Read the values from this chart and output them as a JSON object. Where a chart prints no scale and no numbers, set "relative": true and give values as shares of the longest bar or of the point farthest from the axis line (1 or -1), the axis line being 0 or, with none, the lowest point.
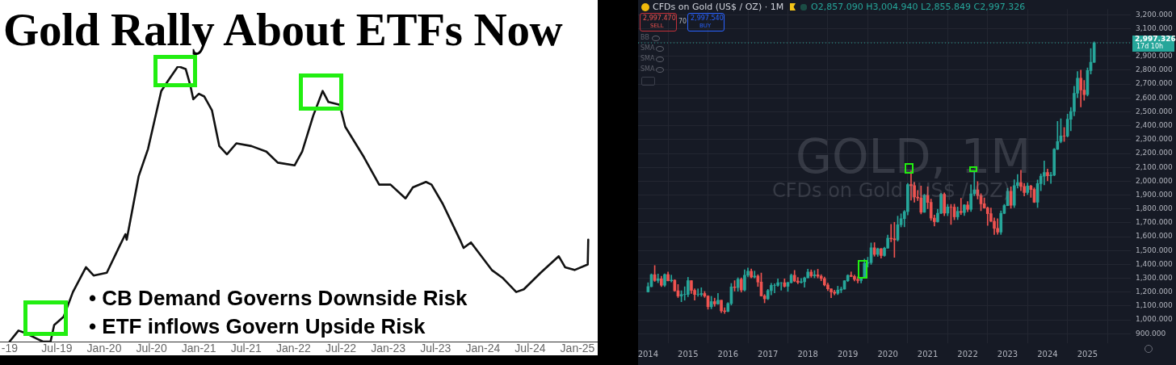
{
  "chart_data": [
    {
      "type": "line",
      "title": "Gold Rally About ETFs Now",
      "relative": true,
      "x": [
        "2019-01-01",
        "2019-02-05",
        "2019-03-04",
        "2019-04-16",
        "2019-05-08",
        "2019-06-07",
        "2019-06-21",
        "2019-07-27",
        "2019-09-02",
        "2019-10-22",
        "2019-11-21",
        "2020-01-11",
        "2020-03-01",
        "2020-03-22",
        "2020-03-27",
        "2020-05-12",
        "2020-06-18",
        "2020-08-08",
        "2020-09-06",
        "2020-10-12",
        "2020-11-11",
        "2020-11-29",
        "2020-12-10",
        "2021-01-01",
        "2021-01-22",
        "2021-02-21",
        "2021-03-19",
        "2021-04-18",
        "2021-05-24",
        "2021-07-21",
        "2021-09-18",
        "2021-11-01",
        "2022-01-05",
        "2022-02-04",
        "2022-03-16",
        "2022-04-22",
        "2022-05-14",
        "2022-06-27",
        "2022-07-18",
        "2022-09-29",
        "2022-11-27",
        "2023-01-10",
        "2023-03-07",
        "2023-04-05",
        "2023-05-25",
        "2023-06-16",
        "2023-07-29",
        "2023-10-04",
        "2023-10-18",
        "2023-11-16",
        "2024-02-05",
        "2024-03-18",
        "2024-05-08",
        "2024-06-07",
        "2024-08-11",
        "2024-10-20",
        "2024-11-14",
        "2024-12-20",
        "2025-02-10",
        "2025-02-12"
      ],
      "series": [
        {
          "color": "#111111",
          "values": [
            0.0,
            0.04,
            0.03,
            0.01,
            0.0,
            0.0,
            0.06,
            0.09,
            0.18,
            0.27,
            0.24,
            0.25,
            0.35,
            0.39,
            0.37,
            0.6,
            0.7,
            0.91,
            0.95,
            1.0,
            0.99,
            0.93,
            0.88,
            0.9,
            0.89,
            0.84,
            0.71,
            0.68,
            0.72,
            0.71,
            0.69,
            0.65,
            0.64,
            0.69,
            0.82,
            0.91,
            0.87,
            0.86,
            0.78,
            0.67,
            0.57,
            0.57,
            0.52,
            0.56,
            0.58,
            0.57,
            0.5,
            0.37,
            0.34,
            0.36,
            0.26,
            0.23,
            0.18,
            0.19,
            0.25,
            0.31,
            0.27,
            0.26,
            0.28,
            0.37
          ]
        }
      ],
      "xlim": [
        "2018-11-25",
        "2025-03-18"
      ],
      "xticks": [
        {
          "value": "2019-01",
          "label": "-19"
        },
        {
          "value": "2019-07",
          "label": "Jul-19"
        },
        {
          "value": "2020-01",
          "label": "Jan-20"
        },
        {
          "value": "2020-07",
          "label": "Jul-20"
        },
        {
          "value": "2021-01",
          "label": "Jan-21"
        },
        {
          "value": "2021-07",
          "label": "Jul-21"
        },
        {
          "value": "2022-01",
          "label": "Jan-22"
        },
        {
          "value": "2022-07",
          "label": "Jul-22"
        },
        {
          "value": "2023-01",
          "label": "Jan-23"
        },
        {
          "value": "2023-07",
          "label": "Jul-23"
        },
        {
          "value": "2024-01",
          "label": "Jan-24"
        },
        {
          "value": "2024-07",
          "label": "Jul-24"
        },
        {
          "value": "2025-01",
          "label": "Jan-25"
        }
      ],
      "annotations": [
        "• CB Demand Governs Downside Risk",
        "• ETF inflows Govern Upside Risk"
      ]
    },
    {
      "type": "candlestick",
      "title": "CFDs on Gold (US$ / OZ) · 1M",
      "subtitle": "O2,857.090 H3,004.940 L2,855.849 C2,997.326",
      "x": [
        "2014-01",
        "2014-02",
        "2014-03",
        "2014-04",
        "2014-05",
        "2014-06",
        "2014-07",
        "2014-08",
        "2014-09",
        "2014-10",
        "2014-11",
        "2014-12",
        "2015-01",
        "2015-02",
        "2015-03",
        "2015-04",
        "2015-05",
        "2015-06",
        "2015-07",
        "2015-08",
        "2015-09",
        "2015-10",
        "2015-11",
        "2015-12",
        "2016-01",
        "2016-02",
        "2016-03",
        "2016-04",
        "2016-05",
        "2016-06",
        "2016-07",
        "2016-08",
        "2016-09",
        "2016-10",
        "2016-11",
        "2016-12",
        "2017-01",
        "2017-02",
        "2017-03",
        "2017-04",
        "2017-05",
        "2017-06",
        "2017-07",
        "2017-08",
        "2017-09",
        "2017-10",
        "2017-11",
        "2017-12",
        "2018-01",
        "2018-02",
        "2018-03",
        "2018-04",
        "2018-05",
        "2018-06",
        "2018-07",
        "2018-08",
        "2018-09",
        "2018-10",
        "2018-11",
        "2018-12",
        "2019-01",
        "2019-02",
        "2019-03",
        "2019-04",
        "2019-05",
        "2019-06",
        "2019-07",
        "2019-08",
        "2019-09",
        "2019-10",
        "2019-11",
        "2019-12",
        "2020-01",
        "2020-02",
        "2020-03",
        "2020-04",
        "2020-05",
        "2020-06",
        "2020-07",
        "2020-08",
        "2020-09",
        "2020-10",
        "2020-11",
        "2020-12",
        "2021-01",
        "2021-02",
        "2021-03",
        "2021-04",
        "2021-05",
        "2021-06",
        "2021-07",
        "2021-08",
        "2021-09",
        "2021-10",
        "2021-11",
        "2021-12",
        "2022-01",
        "2022-02",
        "2022-03",
        "2022-04",
        "2022-05",
        "2022-06",
        "2022-07",
        "2022-08",
        "2022-09",
        "2022-10",
        "2022-11",
        "2022-12",
        "2023-01",
        "2023-02",
        "2023-03",
        "2023-04",
        "2023-05",
        "2023-06",
        "2023-07",
        "2023-08",
        "2023-09",
        "2023-10",
        "2023-11",
        "2023-12",
        "2024-01",
        "2024-02",
        "2024-03",
        "2024-04",
        "2024-05",
        "2024-06",
        "2024-07",
        "2024-08",
        "2024-09",
        "2024-10",
        "2024-11",
        "2024-12",
        "2025-01",
        "2025-02",
        "2025-03"
      ],
      "ohlc": [
        [
          1202,
          1268,
          1200,
          1240
        ],
        [
          1240,
          1332,
          1238,
          1326
        ],
        [
          1326,
          1392,
          1277,
          1284
        ],
        [
          1284,
          1331,
          1268,
          1296
        ],
        [
          1296,
          1315,
          1240,
          1250
        ],
        [
          1250,
          1332,
          1240,
          1327
        ],
        [
          1327,
          1345,
          1281,
          1282
        ],
        [
          1282,
          1323,
          1273,
          1287
        ],
        [
          1287,
          1290,
          1206,
          1210
        ],
        [
          1210,
          1255,
          1161,
          1172
        ],
        [
          1172,
          1210,
          1131,
          1183
        ],
        [
          1183,
          1239,
          1142,
          1184
        ],
        [
          1184,
          1307,
          1167,
          1283
        ],
        [
          1283,
          1284,
          1191,
          1213
        ],
        [
          1213,
          1224,
          1142,
          1183
        ],
        [
          1183,
          1224,
          1170,
          1183
        ],
        [
          1183,
          1232,
          1170,
          1190
        ],
        [
          1190,
          1205,
          1162,
          1172
        ],
        [
          1172,
          1175,
          1077,
          1095
        ],
        [
          1095,
          1170,
          1080,
          1132
        ],
        [
          1132,
          1157,
          1098,
          1115
        ],
        [
          1115,
          1191,
          1112,
          1142
        ],
        [
          1142,
          1142,
          1052,
          1065
        ],
        [
          1065,
          1088,
          1046,
          1061
        ],
        [
          1061,
          1125,
          1058,
          1118
        ],
        [
          1118,
          1263,
          1107,
          1238
        ],
        [
          1238,
          1283,
          1208,
          1233
        ],
        [
          1233,
          1304,
          1207,
          1293
        ],
        [
          1293,
          1303,
          1200,
          1215
        ],
        [
          1215,
          1362,
          1208,
          1322
        ],
        [
          1322,
          1375,
          1310,
          1351
        ],
        [
          1351,
          1367,
          1302,
          1309
        ],
        [
          1309,
          1352,
          1302,
          1316
        ],
        [
          1316,
          1326,
          1241,
          1273
        ],
        [
          1273,
          1338,
          1171,
          1173
        ],
        [
          1173,
          1183,
          1123,
          1152
        ],
        [
          1152,
          1220,
          1146,
          1211
        ],
        [
          1211,
          1264,
          1180,
          1249
        ],
        [
          1249,
          1261,
          1195,
          1249
        ],
        [
          1249,
          1296,
          1241,
          1268
        ],
        [
          1268,
          1270,
          1214,
          1268
        ],
        [
          1268,
          1296,
          1236,
          1242
        ],
        [
          1242,
          1273,
          1205,
          1269
        ],
        [
          1269,
          1331,
          1265,
          1322
        ],
        [
          1322,
          1357,
          1275,
          1280
        ],
        [
          1280,
          1306,
          1261,
          1271
        ],
        [
          1271,
          1299,
          1265,
          1275
        ],
        [
          1275,
          1309,
          1236,
          1303
        ],
        [
          1303,
          1366,
          1303,
          1345
        ],
        [
          1345,
          1361,
          1307,
          1318
        ],
        [
          1318,
          1356,
          1303,
          1325
        ],
        [
          1325,
          1365,
          1302,
          1315
        ],
        [
          1315,
          1326,
          1282,
          1298
        ],
        [
          1298,
          1309,
          1245,
          1252
        ],
        [
          1252,
          1266,
          1211,
          1224
        ],
        [
          1224,
          1224,
          1160,
          1201
        ],
        [
          1201,
          1214,
          1180,
          1192
        ],
        [
          1192,
          1243,
          1182,
          1215
        ],
        [
          1215,
          1237,
          1196,
          1222
        ],
        [
          1222,
          1284,
          1221,
          1282
        ],
        [
          1282,
          1326,
          1276,
          1321
        ],
        [
          1321,
          1346,
          1311,
          1313
        ],
        [
          1313,
          1324,
          1281,
          1292
        ],
        [
          1292,
          1310,
          1266,
          1284
        ],
        [
          1284,
          1306,
          1266,
          1305
        ],
        [
          1305,
          1439,
          1301,
          1409
        ],
        [
          1409,
          1452,
          1381,
          1413
        ],
        [
          1413,
          1555,
          1400,
          1520
        ],
        [
          1520,
          1557,
          1459,
          1472
        ],
        [
          1472,
          1518,
          1458,
          1513
        ],
        [
          1513,
          1516,
          1445,
          1464
        ],
        [
          1464,
          1525,
          1459,
          1517
        ],
        [
          1517,
          1611,
          1517,
          1589
        ],
        [
          1589,
          1689,
          1563,
          1585
        ],
        [
          1585,
          1704,
          1451,
          1577
        ],
        [
          1577,
          1748,
          1568,
          1686
        ],
        [
          1686,
          1765,
          1670,
          1730
        ],
        [
          1730,
          1789,
          1671,
          1781
        ],
        [
          1781,
          1984,
          1757,
          1975
        ],
        [
          1975,
          2075,
          1863,
          1968
        ],
        [
          1968,
          1992,
          1848,
          1886
        ],
        [
          1886,
          1933,
          1860,
          1879
        ],
        [
          1879,
          1966,
          1764,
          1776
        ],
        [
          1776,
          1906,
          1775,
          1898
        ],
        [
          1898,
          1959,
          1802,
          1847
        ],
        [
          1847,
          1871,
          1717,
          1734
        ],
        [
          1734,
          1756,
          1677,
          1708
        ],
        [
          1708,
          1798,
          1704,
          1769
        ],
        [
          1769,
          1913,
          1766,
          1906
        ],
        [
          1906,
          1916,
          1751,
          1770
        ],
        [
          1770,
          1833,
          1751,
          1814
        ],
        [
          1814,
          1833,
          1688,
          1813
        ],
        [
          1813,
          1834,
          1722,
          1743
        ],
        [
          1743,
          1814,
          1723,
          1783
        ],
        [
          1783,
          1877,
          1759,
          1774
        ],
        [
          1774,
          1831,
          1753,
          1829
        ],
        [
          1829,
          1853,
          1780,
          1797
        ],
        [
          1797,
          1974,
          1782,
          1909
        ],
        [
          1909,
          2070,
          1895,
          1937
        ],
        [
          1937,
          1998,
          1872,
          1897
        ],
        [
          1897,
          1910,
          1787,
          1837
        ],
        [
          1837,
          1879,
          1805,
          1807
        ],
        [
          1807,
          1814,
          1681,
          1766
        ],
        [
          1766,
          1807,
          1709,
          1711
        ],
        [
          1711,
          1735,
          1615,
          1660
        ],
        [
          1660,
          1730,
          1617,
          1633
        ],
        [
          1633,
          1786,
          1616,
          1768
        ],
        [
          1768,
          1833,
          1765,
          1824
        ],
        [
          1824,
          1949,
          1823,
          1928
        ],
        [
          1928,
          1960,
          1805,
          1827
        ],
        [
          1827,
          2010,
          1810,
          1969
        ],
        [
          1969,
          2048,
          1950,
          1990
        ],
        [
          1990,
          2079,
          1932,
          1962
        ],
        [
          1962,
          1984,
          1893,
          1919
        ],
        [
          1919,
          1987,
          1903,
          1965
        ],
        [
          1965,
          1971,
          1884,
          1940
        ],
        [
          1940,
          1953,
          1846,
          1849
        ],
        [
          1849,
          2009,
          1810,
          1983
        ],
        [
          1983,
          2052,
          1931,
          2036
        ],
        [
          2036,
          2146,
          1973,
          2063
        ],
        [
          2063,
          2088,
          2002,
          2039
        ],
        [
          2039,
          2065,
          1984,
          2044
        ],
        [
          2044,
          2236,
          2039,
          2230
        ],
        [
          2230,
          2431,
          2228,
          2286
        ],
        [
          2286,
          2450,
          2277,
          2327
        ],
        [
          2327,
          2387,
          2286,
          2326
        ],
        [
          2326,
          2483,
          2319,
          2447
        ],
        [
          2447,
          2531,
          2364,
          2503
        ],
        [
          2503,
          2685,
          2471,
          2634
        ],
        [
          2634,
          2790,
          2603,
          2743
        ],
        [
          2743,
          2801,
          2536,
          2657
        ],
        [
          2657,
          2726,
          2583,
          2624
        ],
        [
          2624,
          2817,
          2614,
          2798
        ],
        [
          2798,
          2956,
          2772,
          2857
        ],
        [
          2857.09,
          3004.94,
          2855.849,
          2997.326
        ]
      ],
      "xlim": [
        "2013-10",
        "2026-02"
      ],
      "xticks": [
        "2014",
        "2015",
        "2016",
        "2017",
        "2018",
        "2019",
        "2020",
        "2021",
        "2022",
        "2023",
        "2024",
        "2025"
      ],
      "ylim": [
        832,
        3240
      ],
      "yticks": [
        {
          "value": 900,
          "label": "900.000"
        },
        {
          "value": 1000,
          "label": "1,000.000"
        },
        {
          "value": 1100,
          "label": "1,100.000"
        },
        {
          "value": 1200,
          "label": "1,200.000"
        },
        {
          "value": 1300,
          "label": "1,300.000"
        },
        {
          "value": 1400,
          "label": "1,400.000"
        },
        {
          "value": 1500,
          "label": "1,500.000"
        },
        {
          "value": 1600,
          "label": "1,600.000"
        },
        {
          "value": 1700,
          "label": "1,700.000"
        },
        {
          "value": 1800,
          "label": "1,800.000"
        },
        {
          "value": 1900,
          "label": "1,900.000"
        },
        {
          "value": 2000,
          "label": "2,000.000"
        },
        {
          "value": 2100,
          "label": "2,100.000"
        },
        {
          "value": 2200,
          "label": "2,200.000"
        },
        {
          "value": 2300,
          "label": "2,300.000"
        },
        {
          "value": 2400,
          "label": "2,400.000"
        },
        {
          "value": 2500,
          "label": "2,500.000"
        },
        {
          "value": 2600,
          "label": "2,600.000"
        },
        {
          "value": 2700,
          "label": "2,700.000"
        },
        {
          "value": 2800,
          "label": "2,800.000"
        },
        {
          "value": 2900,
          "label": "2,900.000"
        },
        {
          "value": 3000,
          "label": null
        },
        {
          "value": 3100,
          "label": "3,100.000"
        },
        {
          "value": 3200,
          "label": "3,200.000"
        }
      ],
      "grid": true,
      "ref_lines": [
        {
          "axis": "y",
          "value": 2997.326,
          "label": "2,997.326",
          "color": "#26a69a",
          "line_style": "dotted"
        }
      ],
      "annotations": [
        "2,997.470",
        "SELL",
        "70",
        "2,997.540",
        "BUY",
        "BB",
        "SMA",
        "SMA",
        "SMA",
        "GOLD, 1M",
        "CFDs on Gold (US$ / OZ)",
        "17d 10h"
      ]
    }
  ]
}
